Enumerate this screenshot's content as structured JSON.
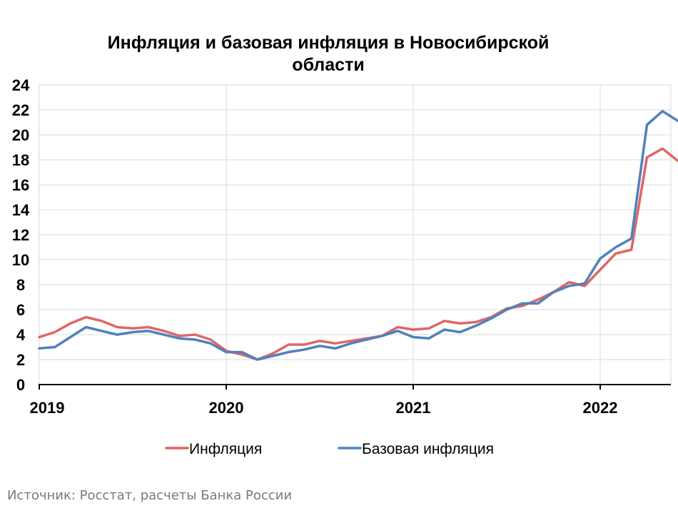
{
  "chart_data": {
    "type": "line",
    "title_lines": [
      "Инфляция и базовая инфляция в Новосибирской",
      "области"
    ],
    "xlabel": "",
    "ylabel": "",
    "ylim": [
      0,
      24
    ],
    "yticks": [
      0,
      2,
      4,
      6,
      8,
      10,
      12,
      14,
      16,
      18,
      20,
      22,
      24
    ],
    "xticks": [
      {
        "label": "2019",
        "x": "2019-01"
      },
      {
        "label": "2020",
        "x": "2020-01"
      },
      {
        "label": "2021",
        "x": "2021-01"
      },
      {
        "label": "2022",
        "x": "2022-01"
      }
    ],
    "x": [
      "2019-01",
      "2019-02",
      "2019-03",
      "2019-04",
      "2019-05",
      "2019-06",
      "2019-07",
      "2019-08",
      "2019-09",
      "2019-10",
      "2019-11",
      "2019-12",
      "2020-01",
      "2020-02",
      "2020-03",
      "2020-04",
      "2020-05",
      "2020-06",
      "2020-07",
      "2020-08",
      "2020-09",
      "2020-10",
      "2020-11",
      "2020-12",
      "2021-01",
      "2021-02",
      "2021-03",
      "2021-04",
      "2021-05",
      "2021-06",
      "2021-07",
      "2021-08",
      "2021-09",
      "2021-10",
      "2021-11",
      "2021-12",
      "2022-01",
      "2022-02",
      "2022-03",
      "2022-04",
      "2022-05"
    ],
    "grid": true,
    "legend_position": "bottom",
    "series": [
      {
        "name": "Инфляция",
        "color": "#e06666",
        "values": [
          3.8,
          4.2,
          4.9,
          5.4,
          5.1,
          4.6,
          4.5,
          4.6,
          4.3,
          3.9,
          4.0,
          3.6,
          2.7,
          2.4,
          2.0,
          2.5,
          3.2,
          3.2,
          3.5,
          3.3,
          3.5,
          3.7,
          3.9,
          4.6,
          4.4,
          4.5,
          5.1,
          4.9,
          5.0,
          5.4,
          6.1,
          6.3,
          6.8,
          7.4,
          8.2,
          7.9,
          9.2,
          10.5,
          10.8,
          18.2,
          18.9
        ]
      },
      {
        "name": "Базовая инфляция",
        "color": "#4f81bd",
        "values": [
          2.9,
          3.0,
          3.8,
          4.6,
          4.3,
          4.0,
          4.2,
          4.3,
          4.0,
          3.7,
          3.6,
          3.3,
          2.6,
          2.6,
          2.0,
          2.3,
          2.6,
          2.8,
          3.1,
          2.9,
          3.3,
          3.6,
          3.9,
          4.3,
          3.8,
          3.7,
          4.4,
          4.2,
          4.7,
          5.3,
          6.0,
          6.5,
          6.5,
          7.4,
          7.9,
          8.1,
          10.1,
          11.0,
          11.7,
          20.8,
          21.9
        ]
      }
    ],
    "series_last_point": {
      "x": "2022-06",
      "inflation": 17.9,
      "core": 21.1
    }
  },
  "source": "Источник: Росстат, расчеты Банка России"
}
